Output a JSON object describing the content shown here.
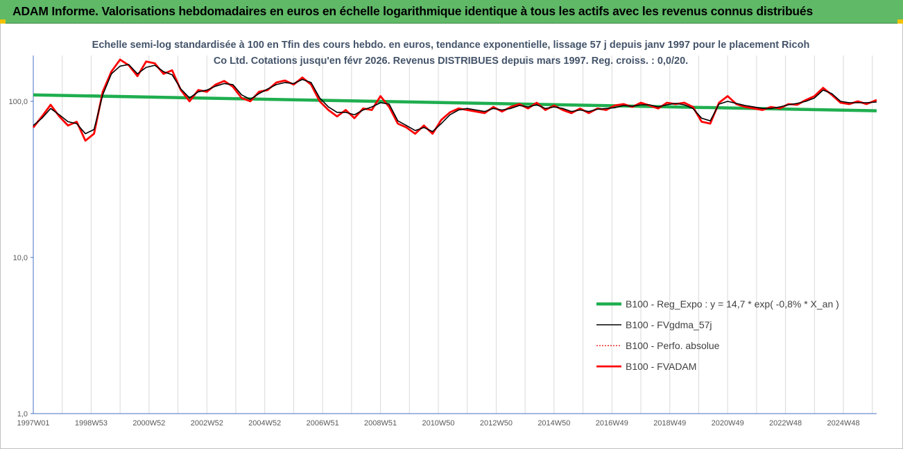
{
  "header": {
    "title": "ADAM Informe. Valorisations hebdomadaires en euros en échelle logarithmique identique à tous les actifs avec les revenus connus distribués"
  },
  "chart_data": {
    "type": "line",
    "title": "Echelle semi-log standardisée à 100 en Tfin des cours hebdo. en euros, tendance exponentielle, lissage 57 j depuis janv 1997 pour le placement Ricoh Co Ltd. Cotations jusqu'en févr 2026. Revenus DISTRIBUES depuis mars 1997. Reg. croiss. : 0,0/20.",
    "y_scale": "log",
    "ylim": [
      1,
      200
    ],
    "y_ticks": [
      1,
      10,
      100
    ],
    "y_tick_labels": [
      "1,0",
      "10,0",
      "100,0"
    ],
    "x_range": [
      1997.0,
      2026.15
    ],
    "x_tick_labels": [
      "1997W01",
      "1998W53",
      "2000W52",
      "2002W52",
      "2004W52",
      "2006W51",
      "2008W51",
      "2010W50",
      "2012W50",
      "2014W50",
      "2016W49",
      "2018W49",
      "2020W49",
      "2022W48",
      "2024W48"
    ],
    "x_tick_years": [
      1997.0,
      1999.0,
      2001.0,
      2003.0,
      2005.0,
      2007.0,
      2009.0,
      2011.0,
      2013.0,
      2015.0,
      2017.0,
      2019.0,
      2021.0,
      2023.0,
      2025.0
    ],
    "gridlines": "vertical",
    "legend_position": "right-bottom",
    "colors": {
      "reg_expo": "#1fae4f",
      "gdma": "#000000",
      "perfo": "#e00000",
      "fvadam": "#ff0000"
    },
    "series": [
      {
        "name": "B100 - Reg_Expo : y = 14,7 * exp( -0,8% *  X_an )",
        "style": "thick-green",
        "x": [
          1997.0,
          2026.15
        ],
        "values": [
          110,
          87
        ]
      },
      {
        "name": "B100 - FVgdma_57j",
        "style": "thin-black",
        "x": [
          1997.0,
          1997.3,
          1997.6,
          1997.9,
          1998.2,
          1998.5,
          1998.8,
          1999.1,
          1999.4,
          1999.7,
          2000.0,
          2000.3,
          2000.6,
          2000.9,
          2001.2,
          2001.5,
          2001.8,
          2002.1,
          2002.4,
          2002.7,
          2003.0,
          2003.3,
          2003.6,
          2003.9,
          2004.2,
          2004.5,
          2004.8,
          2005.1,
          2005.4,
          2005.7,
          2006.0,
          2006.3,
          2006.6,
          2006.9,
          2007.2,
          2007.5,
          2007.8,
          2008.1,
          2008.4,
          2008.7,
          2009.0,
          2009.3,
          2009.6,
          2009.9,
          2010.2,
          2010.5,
          2010.8,
          2011.1,
          2011.4,
          2011.7,
          2012.0,
          2012.3,
          2012.6,
          2012.9,
          2013.2,
          2013.5,
          2013.8,
          2014.1,
          2014.4,
          2014.7,
          2015.0,
          2015.3,
          2015.6,
          2015.9,
          2016.2,
          2016.5,
          2016.8,
          2017.1,
          2017.4,
          2017.7,
          2018.0,
          2018.3,
          2018.6,
          2018.9,
          2019.2,
          2019.5,
          2019.8,
          2020.1,
          2020.4,
          2020.7,
          2021.0,
          2021.3,
          2021.6,
          2021.9,
          2022.2,
          2022.5,
          2022.8,
          2023.1,
          2023.4,
          2023.7,
          2024.0,
          2024.3,
          2024.6,
          2024.9,
          2025.2,
          2025.5,
          2025.8,
          2026.15
        ],
        "values": [
          70,
          78,
          90,
          82,
          74,
          72,
          62,
          66,
          110,
          150,
          168,
          172,
          150,
          165,
          170,
          155,
          148,
          120,
          105,
          115,
          118,
          125,
          130,
          128,
          110,
          103,
          112,
          120,
          128,
          132,
          130,
          138,
          132,
          105,
          92,
          85,
          85,
          82,
          88,
          92,
          98,
          96,
          75,
          70,
          65,
          68,
          64,
          72,
          82,
          88,
          90,
          88,
          86,
          90,
          88,
          90,
          94,
          92,
          95,
          90,
          92,
          90,
          86,
          88,
          86,
          89,
          90,
          91,
          94,
          93,
          95,
          95,
          92,
          95,
          97,
          95,
          90,
          78,
          75,
          96,
          100,
          97,
          94,
          92,
          90,
          90,
          92,
          95,
          97,
          100,
          105,
          118,
          112,
          100,
          98,
          98,
          98,
          99
        ]
      },
      {
        "name": "B100 - Perfo. absolue",
        "style": "dotted-red",
        "x": [
          1997.0,
          1997.3,
          1997.6,
          1997.9,
          1998.2,
          1998.5,
          1998.8,
          1999.1,
          1999.4,
          1999.7,
          2000.0,
          2000.3,
          2000.6,
          2000.9,
          2001.2,
          2001.5,
          2001.8,
          2002.1,
          2002.4,
          2002.7,
          2003.0,
          2003.3,
          2003.6,
          2003.9,
          2004.2,
          2004.5,
          2004.8,
          2005.1,
          2005.4,
          2005.7,
          2006.0,
          2006.3,
          2006.6,
          2006.9,
          2007.2,
          2007.5,
          2007.8,
          2008.1,
          2008.4,
          2008.7,
          2009.0,
          2009.3,
          2009.6,
          2009.9,
          2010.2,
          2010.5,
          2010.8,
          2011.1,
          2011.4,
          2011.7,
          2012.0,
          2012.3,
          2012.6,
          2012.9,
          2013.2,
          2013.5,
          2013.8,
          2014.1,
          2014.4,
          2014.7,
          2015.0,
          2015.3,
          2015.6,
          2015.9,
          2016.2,
          2016.5,
          2016.8,
          2017.1,
          2017.4,
          2017.7,
          2018.0,
          2018.3,
          2018.6,
          2018.9,
          2019.2,
          2019.5,
          2019.8,
          2020.1,
          2020.4,
          2020.7,
          2021.0,
          2021.3,
          2021.6,
          2021.9,
          2022.2,
          2022.5,
          2022.8,
          2023.1,
          2023.4,
          2023.7,
          2024.0,
          2024.3,
          2024.6,
          2024.9,
          2025.2,
          2025.5,
          2025.8,
          2026.15
        ],
        "values": [
          70,
          78,
          90,
          82,
          74,
          72,
          62,
          66,
          110,
          150,
          168,
          172,
          150,
          165,
          170,
          155,
          148,
          120,
          105,
          115,
          118,
          125,
          130,
          128,
          110,
          103,
          112,
          120,
          128,
          132,
          130,
          138,
          132,
          105,
          92,
          85,
          85,
          82,
          88,
          92,
          98,
          96,
          75,
          70,
          65,
          68,
          64,
          72,
          82,
          88,
          90,
          88,
          86,
          90,
          88,
          90,
          94,
          92,
          95,
          90,
          92,
          90,
          86,
          88,
          86,
          89,
          90,
          91,
          94,
          93,
          95,
          95,
          92,
          95,
          97,
          95,
          90,
          78,
          75,
          96,
          100,
          97,
          94,
          92,
          90,
          90,
          92,
          95,
          97,
          100,
          105,
          118,
          112,
          100,
          98,
          98,
          98,
          99
        ]
      },
      {
        "name": "B100 - FVADAM",
        "style": "thick-red",
        "x": [
          1997.0,
          1997.3,
          1997.6,
          1997.9,
          1998.2,
          1998.5,
          1998.8,
          1999.1,
          1999.4,
          1999.7,
          2000.0,
          2000.3,
          2000.6,
          2000.9,
          2001.2,
          2001.5,
          2001.8,
          2002.1,
          2002.4,
          2002.7,
          2003.0,
          2003.3,
          2003.6,
          2003.9,
          2004.2,
          2004.5,
          2004.8,
          2005.1,
          2005.4,
          2005.7,
          2006.0,
          2006.3,
          2006.6,
          2006.9,
          2007.2,
          2007.5,
          2007.8,
          2008.1,
          2008.4,
          2008.7,
          2009.0,
          2009.3,
          2009.6,
          2009.9,
          2010.2,
          2010.5,
          2010.8,
          2011.1,
          2011.4,
          2011.7,
          2012.0,
          2012.3,
          2012.6,
          2012.9,
          2013.2,
          2013.5,
          2013.8,
          2014.1,
          2014.4,
          2014.7,
          2015.0,
          2015.3,
          2015.6,
          2015.9,
          2016.2,
          2016.5,
          2016.8,
          2017.1,
          2017.4,
          2017.7,
          2018.0,
          2018.3,
          2018.6,
          2018.9,
          2019.2,
          2019.5,
          2019.8,
          2020.1,
          2020.4,
          2020.7,
          2021.0,
          2021.3,
          2021.6,
          2021.9,
          2022.2,
          2022.5,
          2022.8,
          2023.1,
          2023.4,
          2023.7,
          2024.0,
          2024.3,
          2024.6,
          2024.9,
          2025.2,
          2025.5,
          2025.8,
          2026.15
        ],
        "values": [
          68,
          80,
          95,
          80,
          70,
          74,
          56,
          62,
          115,
          155,
          185,
          170,
          145,
          180,
          175,
          150,
          158,
          118,
          100,
          118,
          115,
          128,
          135,
          124,
          105,
          100,
          115,
          118,
          132,
          136,
          128,
          142,
          128,
          100,
          88,
          80,
          88,
          78,
          90,
          88,
          108,
          92,
          72,
          68,
          62,
          70,
          62,
          76,
          85,
          90,
          88,
          86,
          84,
          92,
          86,
          92,
          96,
          90,
          98,
          88,
          94,
          88,
          84,
          90,
          84,
          90,
          88,
          94,
          96,
          92,
          98,
          94,
          90,
          98,
          96,
          98,
          92,
          74,
          72,
          98,
          108,
          96,
          92,
          90,
          88,
          92,
          90,
          96,
          95,
          102,
          108,
          122,
          110,
          98,
          96,
          100,
          96,
          102
        ]
      }
    ]
  }
}
